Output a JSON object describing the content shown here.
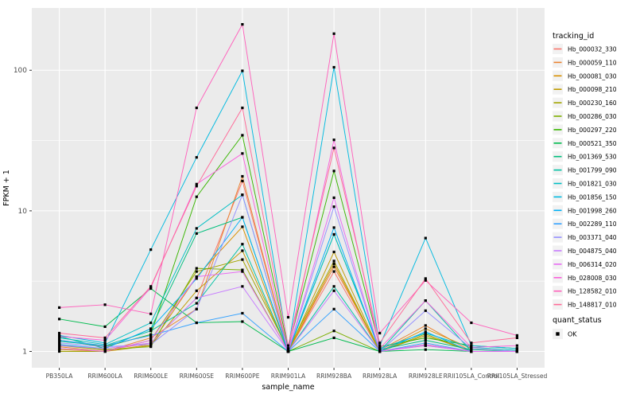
{
  "chart_data": {
    "type": "line",
    "title": "",
    "xlabel": "sample_name",
    "ylabel": "FPKM + 1",
    "y_scale": "log10",
    "y_tick_labels": [
      "1",
      "10",
      "100"
    ],
    "y_tick_logs": [
      0,
      1,
      2
    ],
    "y_minor_logs": [
      0.5,
      1.5
    ],
    "ylim_log": [
      -0.116,
      2.443
    ],
    "grid": true,
    "legend_position": "right",
    "legend_title": "tracking_id",
    "legend2_title": "quant_status",
    "legend2_items": [
      {
        "label": "OK",
        "marker": "black-square"
      }
    ],
    "panel_bg": "#EBEBEB",
    "grid_color": "#FFFFFF",
    "axis_text_color": "#4D4D4D",
    "point_color": "#000000",
    "categories": [
      "PB350LA",
      "RRIM600LA",
      "RRIM600LE",
      "RRIM600SE",
      "RRIM600PE",
      "RRIM901LA",
      "RRIM928BA",
      "RRIM928LA",
      "RRIM928LE",
      "RRII105LA_Control",
      "RRII105LA_Stressed"
    ],
    "series": [
      {
        "name": "Hb_000032_330",
        "color": "#F8766D",
        "values": [
          1.12,
          1.02,
          1.15,
          2.4,
          16.3,
          1.0,
          3.7,
          1.0,
          1.1,
          1.0,
          1.0
        ]
      },
      {
        "name": "Hb_000059_110",
        "color": "#EA8331",
        "values": [
          1.08,
          1.0,
          1.25,
          2.0,
          17.6,
          1.0,
          4.0,
          1.02,
          1.53,
          1.0,
          1.0
        ]
      },
      {
        "name": "Hb_000081_030",
        "color": "#D89000",
        "values": [
          1.03,
          1.0,
          1.12,
          3.4,
          7.7,
          1.0,
          4.2,
          1.0,
          1.45,
          1.05,
          1.0
        ]
      },
      {
        "name": "Hb_000098_210",
        "color": "#C09B00",
        "values": [
          1.05,
          1.0,
          1.1,
          2.7,
          5.2,
          1.0,
          5.1,
          1.0,
          1.3,
          1.0,
          1.0
        ]
      },
      {
        "name": "Hb_000230_160",
        "color": "#A3A500",
        "values": [
          1.0,
          1.0,
          1.2,
          3.7,
          4.5,
          1.03,
          4.4,
          1.0,
          1.33,
          1.0,
          1.0
        ]
      },
      {
        "name": "Hb_000286_030",
        "color": "#7CAE00",
        "values": [
          1.1,
          1.03,
          1.08,
          3.9,
          3.8,
          1.0,
          1.4,
          1.0,
          1.12,
          1.0,
          1.0
        ]
      },
      {
        "name": "Hb_000297_220",
        "color": "#39B600",
        "values": [
          1.2,
          1.08,
          1.32,
          12.6,
          34.5,
          1.05,
          19.2,
          1.08,
          1.25,
          1.1,
          1.05
        ]
      },
      {
        "name": "Hb_000521_350",
        "color": "#00BB4E",
        "values": [
          1.7,
          1.5,
          2.8,
          1.6,
          1.63,
          1.0,
          1.25,
          1.0,
          1.03,
          1.0,
          1.0
        ]
      },
      {
        "name": "Hb_001369_530",
        "color": "#00BF7D",
        "values": [
          1.28,
          1.05,
          1.45,
          6.9,
          9.0,
          1.0,
          6.8,
          1.03,
          1.2,
          1.03,
          1.0
        ]
      },
      {
        "name": "Hb_001799_090",
        "color": "#00C1A3",
        "values": [
          1.18,
          1.1,
          1.4,
          2.2,
          5.8,
          1.0,
          2.9,
          1.0,
          2.3,
          1.0,
          1.0
        ]
      },
      {
        "name": "Hb_001821_030",
        "color": "#00BFC4",
        "values": [
          1.25,
          1.12,
          1.6,
          7.5,
          13.0,
          1.0,
          6.8,
          1.05,
          1.35,
          1.07,
          1.02
        ]
      },
      {
        "name": "Hb_001856_150",
        "color": "#00BAE0",
        "values": [
          1.3,
          1.15,
          5.3,
          24.0,
          99.0,
          1.05,
          105.0,
          1.1,
          6.4,
          1.1,
          1.05
        ]
      },
      {
        "name": "Hb_001998_260",
        "color": "#00B0F6",
        "values": [
          1.12,
          1.05,
          1.45,
          3.3,
          9.0,
          1.0,
          7.6,
          1.0,
          1.38,
          1.0,
          1.0
        ]
      },
      {
        "name": "Hb_002289_110",
        "color": "#35A2FF",
        "values": [
          1.2,
          1.1,
          1.3,
          1.6,
          1.87,
          1.0,
          2.0,
          1.0,
          1.15,
          1.0,
          1.0
        ]
      },
      {
        "name": "Hb_003371_040",
        "color": "#9590FF",
        "values": [
          1.15,
          1.08,
          1.12,
          2.0,
          13.0,
          1.0,
          10.7,
          1.0,
          1.95,
          1.05,
          1.0
        ]
      },
      {
        "name": "Hb_004875_040",
        "color": "#C77CFF",
        "values": [
          1.1,
          1.05,
          1.15,
          2.4,
          2.9,
          1.0,
          2.7,
          1.0,
          1.1,
          1.0,
          1.0
        ]
      },
      {
        "name": "Hb_006314_020",
        "color": "#E76BF3",
        "values": [
          1.05,
          1.0,
          1.2,
          3.4,
          3.7,
          1.0,
          12.4,
          1.0,
          1.12,
          1.0,
          1.0
        ]
      },
      {
        "name": "Hb_028008_030",
        "color": "#FA62DB",
        "values": [
          1.28,
          1.2,
          2.85,
          15.5,
          25.6,
          1.0,
          32.0,
          1.05,
          2.3,
          1.07,
          1.1
        ]
      },
      {
        "name": "Hb_128582_010",
        "color": "#FF62BC",
        "values": [
          2.05,
          2.15,
          1.85,
          54.0,
          212.0,
          1.75,
          182.0,
          1.35,
          3.2,
          1.6,
          1.3
        ]
      },
      {
        "name": "Hb_148817_010",
        "color": "#FF6A98",
        "values": [
          1.35,
          1.25,
          2.9,
          15.0,
          54.0,
          1.1,
          28.0,
          1.15,
          3.3,
          1.15,
          1.25
        ]
      }
    ]
  }
}
